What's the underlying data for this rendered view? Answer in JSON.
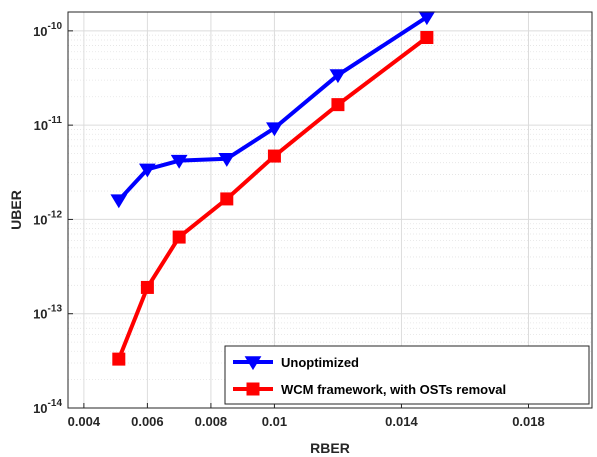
{
  "chart_data": {
    "type": "line",
    "xlabel": "RBER",
    "ylabel": "UBER",
    "xlim": [
      0.0035,
      0.02
    ],
    "ylim_log10": [
      -14,
      -9.8
    ],
    "yscale": "log",
    "grid": true,
    "legend_position": "bottom-right",
    "x_ticks": [
      0.004,
      0.006,
      0.008,
      0.01,
      0.014,
      0.018
    ],
    "x_tick_labels": [
      "0.004",
      "0.006",
      "0.008",
      "0.01",
      "0.014",
      "0.018"
    ],
    "y_ticks_log10": [
      -14,
      -13,
      -12,
      -11,
      -10
    ],
    "y_tick_labels": [
      {
        "base": "10",
        "exp": "-14"
      },
      {
        "base": "10",
        "exp": "-13"
      },
      {
        "base": "10",
        "exp": "-12"
      },
      {
        "base": "10",
        "exp": "-11"
      },
      {
        "base": "10",
        "exp": "-10"
      }
    ],
    "series": [
      {
        "name": "Unoptimized",
        "color": "#0000ff",
        "marker": "triangle-down",
        "x": [
          0.0051,
          0.006,
          0.007,
          0.0085,
          0.01,
          0.012,
          0.0148
        ],
        "y": [
          1.6e-12,
          3.4e-12,
          4.2e-12,
          4.4e-12,
          9.3e-12,
          3.4e-11,
          1.4e-10
        ]
      },
      {
        "name": "WCM framework, with OSTs removal",
        "color": "#ff0000",
        "marker": "square",
        "x": [
          0.0051,
          0.006,
          0.007,
          0.0085,
          0.01,
          0.012,
          0.0148
        ],
        "y": [
          3.3e-14,
          1.9e-13,
          6.5e-13,
          1.65e-12,
          4.7e-12,
          1.65e-11,
          8.5e-11
        ]
      }
    ]
  }
}
